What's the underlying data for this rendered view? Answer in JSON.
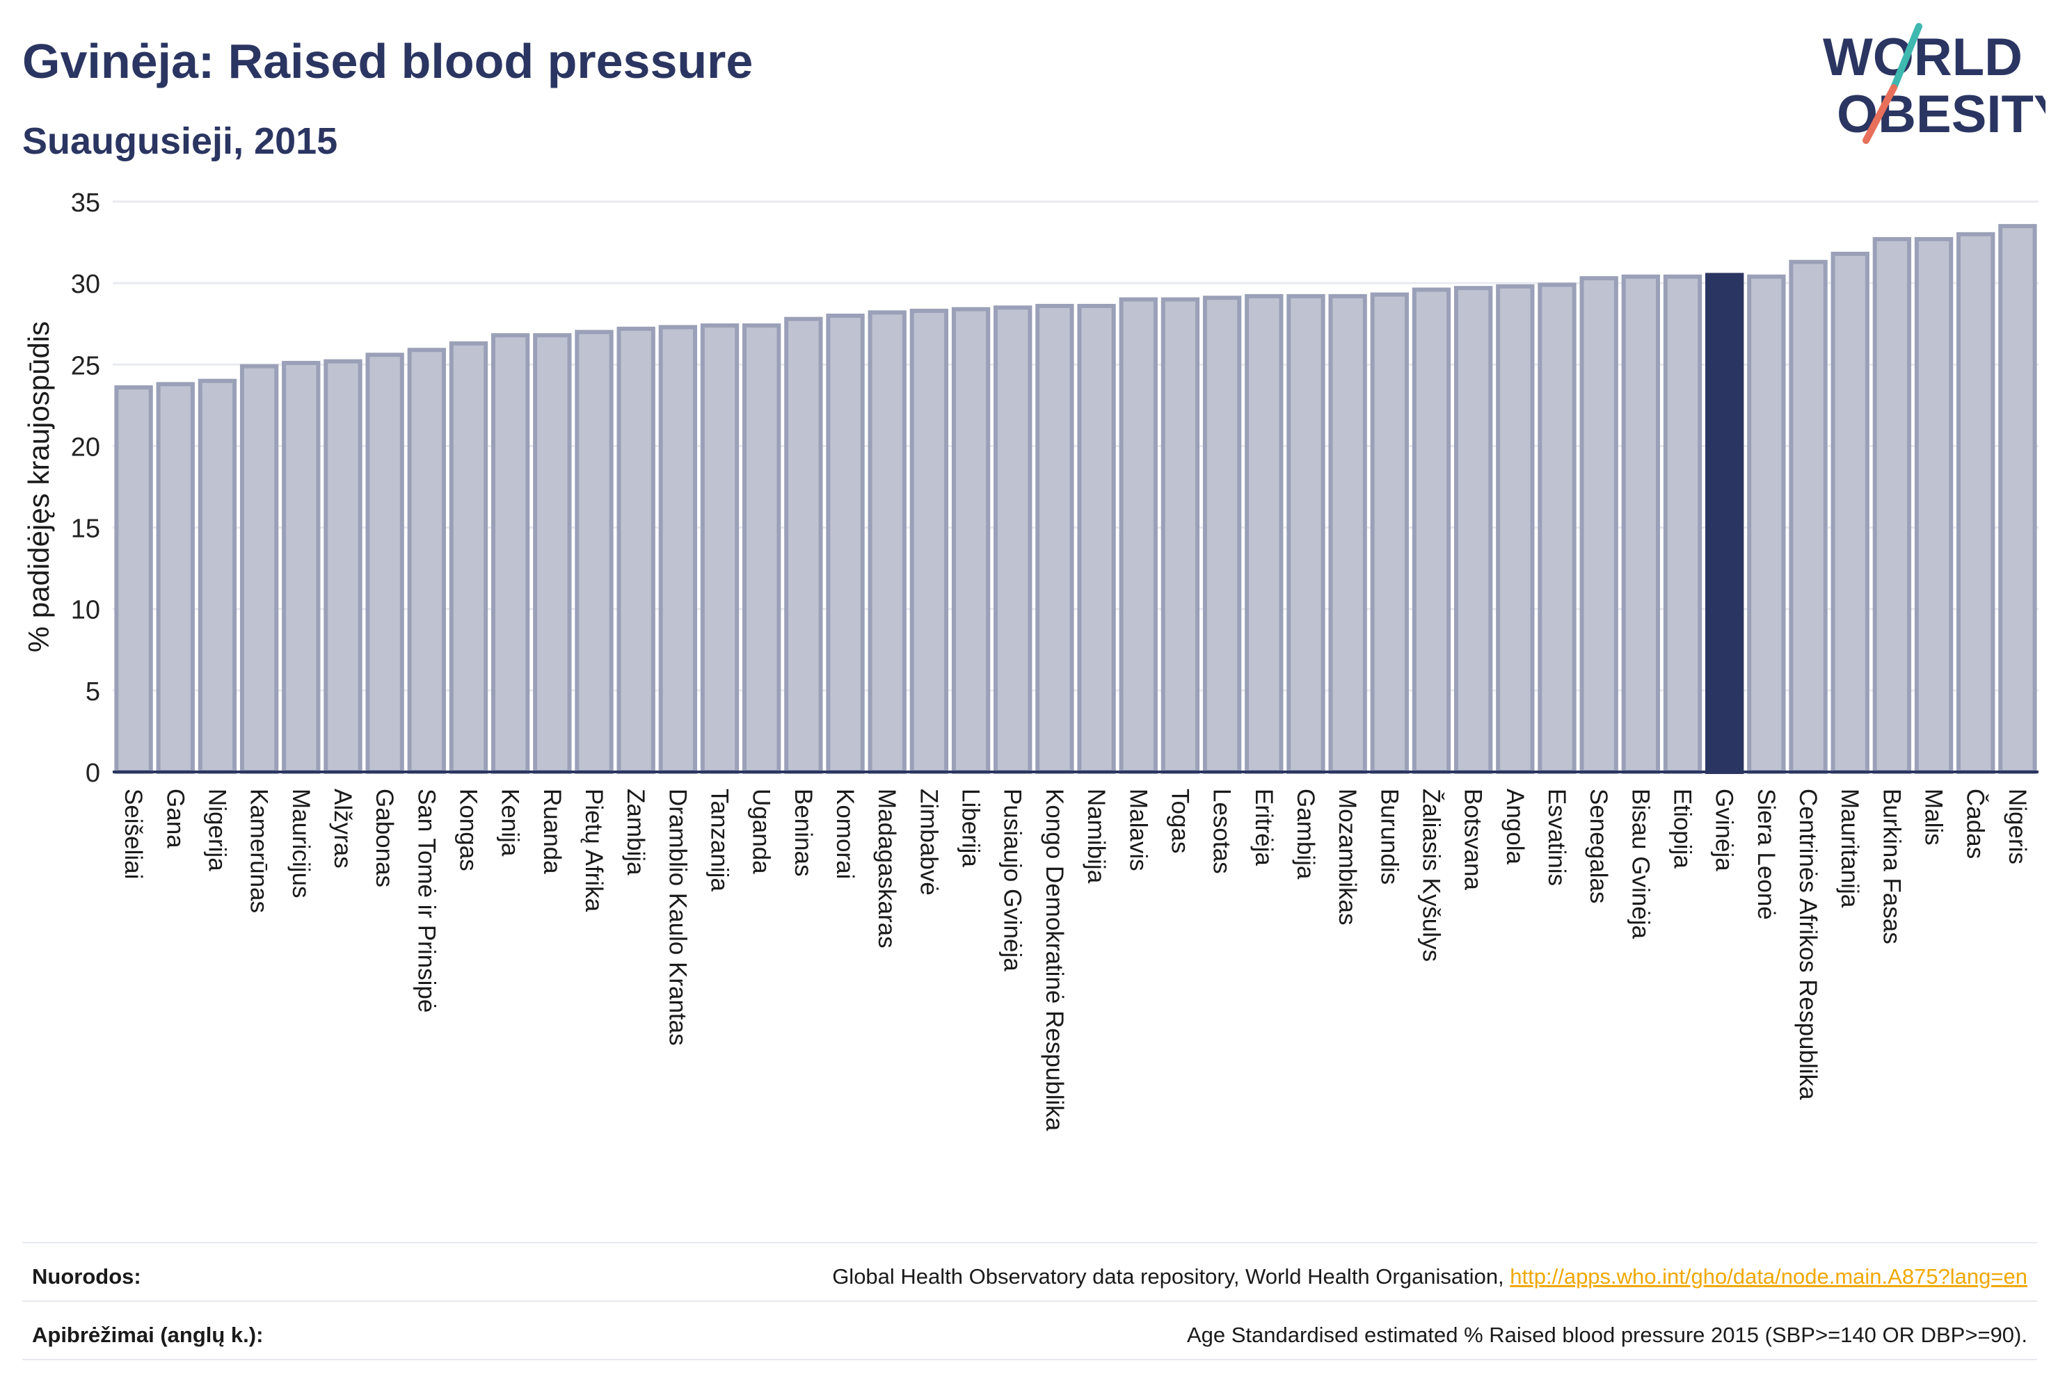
{
  "header": {
    "title": "Gvinėja: Raised blood pressure",
    "subtitle": "Suaugusieji, 2015"
  },
  "logo": {
    "line1": "WORLD",
    "line2": "OBESITY"
  },
  "colors": {
    "bar": "#bfc3d1",
    "bar_stroke": "#9aa0b7",
    "highlight": "#2b3561",
    "grid": "#e8eaf0",
    "axis": "#2b3561",
    "logo_text": "#2b3561",
    "logo_slash_top": "#3fb8b0",
    "logo_slash_bottom": "#e8705a",
    "link": "#f0a800"
  },
  "chart_data": {
    "type": "bar",
    "ylabel": "% padidėjęs kraujospūdis",
    "ylim": [
      0,
      35
    ],
    "yticks": [
      0,
      5,
      10,
      15,
      20,
      25,
      30,
      35
    ],
    "grid": true,
    "highlight": "Gvinėja",
    "categories": [
      "Seišeliai",
      "Gana",
      "Nigerija",
      "Kamerūnas",
      "Mauricijus",
      "Alžyras",
      "Gabonas",
      "San Tomė ir Prinsipė",
      "Kongas",
      "Kenija",
      "Ruanda",
      "Pietų Afrika",
      "Zambija",
      "Dramblio Kaulo Krantas",
      "Tanzanija",
      "Uganda",
      "Beninas",
      "Komorai",
      "Madagaskaras",
      "Zimbabvė",
      "Liberija",
      "Pusiaujo Gvinėja",
      "Kongo Demokratinė Respublika",
      "Namibija",
      "Malavis",
      "Togas",
      "Lesotas",
      "Eritrėja",
      "Gambija",
      "Mozambikas",
      "Burundis",
      "Žaliasis Kyšulys",
      "Botsvana",
      "Angola",
      "Esvatinis",
      "Senegalas",
      "Bisau Gvinėja",
      "Etiopija",
      "Gvinėja",
      "Siera Leonė",
      "Centrinės Afrikos Respublika",
      "Mauritanija",
      "Burkina Fasas",
      "Malis",
      "Čadas",
      "Nigeris"
    ],
    "values": [
      23.6,
      23.8,
      24.0,
      24.9,
      25.1,
      25.2,
      25.6,
      25.9,
      26.3,
      26.8,
      26.8,
      27.0,
      27.2,
      27.3,
      27.4,
      27.4,
      27.8,
      28.0,
      28.2,
      28.3,
      28.4,
      28.5,
      28.6,
      28.6,
      29.0,
      29.0,
      29.1,
      29.2,
      29.2,
      29.2,
      29.3,
      29.6,
      29.7,
      29.8,
      29.9,
      30.3,
      30.4,
      30.4,
      30.5,
      30.4,
      31.3,
      31.8,
      32.7,
      32.7,
      33.0,
      33.5
    ]
  },
  "footer": {
    "sources_label": "Nuorodos:",
    "sources_text": "Global Health Observatory data repository, World Health Organisation, ",
    "sources_link": "http://apps.who.int/gho/data/node.main.A875?lang=en",
    "definitions_label": "Apibrėžimai (anglų k.):",
    "definitions_text": "Age Standardised estimated % Raised blood pressure 2015 (SBP>=140 OR DBP>=90)."
  }
}
